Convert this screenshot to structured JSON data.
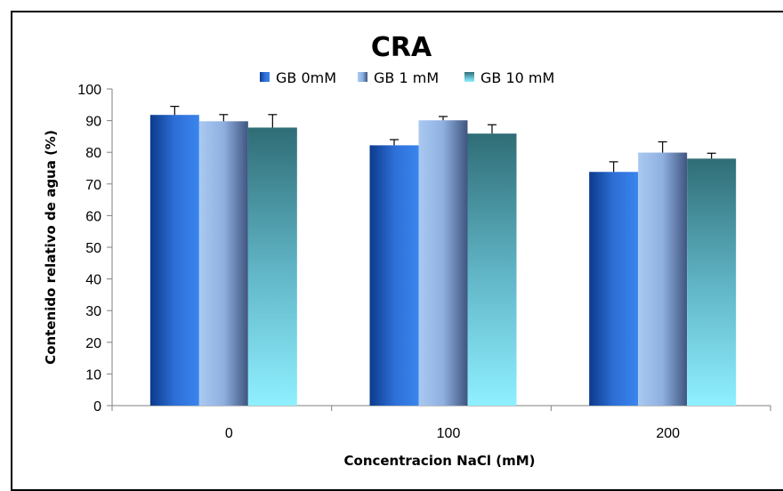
{
  "chart_data": {
    "type": "bar",
    "title": "CRA",
    "xlabel": "Concentracion NaCl (mM)",
    "ylabel": "Contenido relativo de agua (%)",
    "categories": [
      "0",
      "100",
      "200"
    ],
    "ylim": [
      0,
      100
    ],
    "yticks": [
      0,
      10,
      20,
      30,
      40,
      50,
      60,
      70,
      80,
      90,
      100
    ],
    "grid": false,
    "legend_position": "top-center",
    "series": [
      {
        "name": "GB 0mM",
        "values": [
          91.8,
          82.2,
          73.8
        ],
        "errors": [
          2.7,
          1.8,
          3.2
        ],
        "color_top": "#1c4fb3",
        "color_bottom": "#3a7fe0"
      },
      {
        "name": "GB 1 mM",
        "values": [
          89.8,
          90.1,
          79.9
        ],
        "errors": [
          2.1,
          1.2,
          3.4
        ],
        "color_top": "#5070a0",
        "color_bottom": "#a8c8f0"
      },
      {
        "name": "GB 10 mM",
        "values": [
          87.8,
          85.9,
          78.0
        ],
        "errors": [
          4.1,
          2.8,
          1.7
        ],
        "color_top": "#33727a",
        "color_bottom": "#8ff0ff"
      }
    ]
  }
}
